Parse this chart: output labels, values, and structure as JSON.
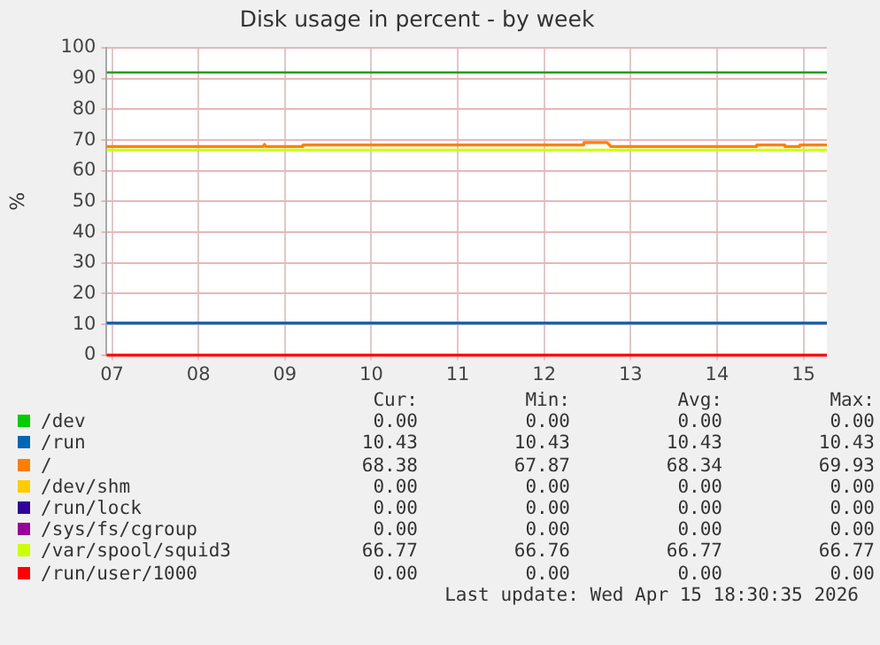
{
  "chart_data": {
    "type": "line",
    "title": "Disk usage in percent - by week",
    "ylabel": "%",
    "xlim": [
      "2026-04-07T10:30",
      "2026-04-15T18:30"
    ],
    "xticks": [
      {
        "value": "2026-04-07T12:00",
        "label": "07"
      },
      {
        "value": "2026-04-08T12:00",
        "label": "08"
      },
      {
        "value": "2026-04-09T12:00",
        "label": "09"
      },
      {
        "value": "2026-04-10T12:00",
        "label": "10"
      },
      {
        "value": "2026-04-11T12:00",
        "label": "11"
      },
      {
        "value": "2026-04-12T12:00",
        "label": "12"
      },
      {
        "value": "2026-04-13T12:00",
        "label": "13"
      },
      {
        "value": "2026-04-14T12:00",
        "label": "14"
      },
      {
        "value": "2026-04-15T12:00",
        "label": "15"
      }
    ],
    "ylim": [
      0,
      100
    ],
    "yticks": [
      0,
      10,
      20,
      30,
      40,
      50,
      60,
      70,
      80,
      90,
      100
    ],
    "grid": true,
    "legend": "bottom",
    "ref_lines": [
      {
        "axis": "y",
        "value": 92,
        "color": "#22a022"
      }
    ],
    "series": [
      {
        "name": "/dev",
        "color": "#00cc00"
      },
      {
        "name": "/run",
        "color": "#0066b3",
        "x": [
          "2026-04-07T10:30",
          "2026-04-15T18:30"
        ],
        "values": [
          10.43,
          10.43
        ]
      },
      {
        "name": "/",
        "color": "#ff8000",
        "x": [
          "2026-04-07T10:30",
          "2026-04-09T06:00",
          "2026-04-09T06:20",
          "2026-04-09T06:40",
          "2026-04-09T17:00",
          "2026-04-09T17:00",
          "2026-04-12T23:00",
          "2026-04-12T23:00",
          "2026-04-13T05:30",
          "2026-04-13T06:30",
          "2026-04-14T23:00",
          "2026-04-14T23:00",
          "2026-04-15T06:50",
          "2026-04-15T06:50",
          "2026-04-15T11:00",
          "2026-04-15T11:00",
          "2026-04-15T18:30"
        ],
        "values": [
          67.9,
          67.9,
          68.6,
          67.9,
          67.9,
          68.4,
          68.4,
          69.2,
          69.2,
          67.9,
          67.9,
          68.4,
          68.4,
          67.9,
          67.9,
          68.4,
          68.38
        ]
      },
      {
        "name": "/dev/shm",
        "color": "#ffcc00"
      },
      {
        "name": "/run/lock",
        "color": "#330099"
      },
      {
        "name": "/sys/fs/cgroup",
        "color": "#990099"
      },
      {
        "name": "/var/spool/squid3",
        "color": "#ccff00",
        "x": [
          "2026-04-07T10:30",
          "2026-04-15T18:30"
        ],
        "values": [
          66.77,
          66.77
        ]
      },
      {
        "name": "/run/user/1000",
        "color": "#ff0000",
        "x": [
          "2026-04-07T10:30",
          "2026-04-15T18:30"
        ],
        "values": [
          0,
          0
        ]
      }
    ],
    "annotations": [
      "Cur:",
      "Min:",
      "Avg:",
      "Max:",
      "0.00",
      "0.00",
      "0.00",
      "0.00",
      "10.43",
      "10.43",
      "10.43",
      "10.43",
      "68.38",
      "67.87",
      "68.34",
      "69.93",
      "0.00",
      "0.00",
      "0.00",
      "0.00",
      "0.00",
      "0.00",
      "0.00",
      "0.00",
      "0.00",
      "0.00",
      "0.00",
      "0.00",
      "66.77",
      "66.76",
      "66.77",
      "66.77",
      "0.00",
      "0.00",
      "0.00",
      "0.00",
      "Last update: Wed Apr 15 18:30:35 2026"
    ]
  }
}
